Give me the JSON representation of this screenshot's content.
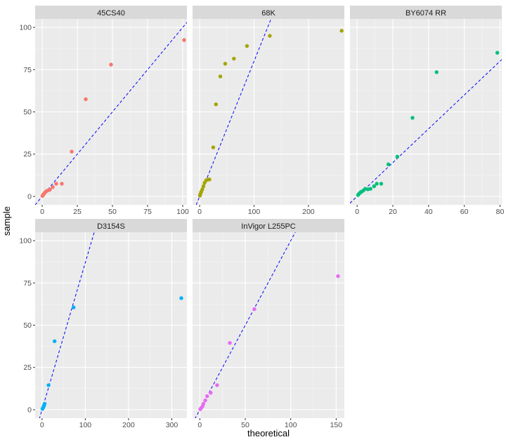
{
  "chart_data": {
    "type": "scatter",
    "xlabel": "theoretical",
    "ylabel": "sample",
    "facets": [
      {
        "label": "45CS40",
        "color": "#F8766D",
        "xlim": [
          -5,
          103
        ],
        "ylim": [
          -5,
          105
        ],
        "xticks": [
          0,
          25,
          50,
          75,
          100
        ],
        "yticks": [
          0,
          25,
          50,
          75,
          100
        ],
        "line": {
          "slope": 1.0,
          "intercept": 0
        },
        "points": [
          [
            0.2,
            0.3
          ],
          [
            0.6,
            0.8
          ],
          [
            1.0,
            1.2
          ],
          [
            1.5,
            1.8
          ],
          [
            2.2,
            2.5
          ],
          [
            3.0,
            3.1
          ],
          [
            4.2,
            3.6
          ],
          [
            5.5,
            4.0
          ],
          [
            7.5,
            5.5
          ],
          [
            10,
            7.5
          ],
          [
            14,
            7.5
          ],
          [
            21,
            26.5
          ],
          [
            31,
            57.5
          ],
          [
            49,
            78
          ],
          [
            101,
            92.5
          ]
        ]
      },
      {
        "label": "68K",
        "color": "#A3A500",
        "xlim": [
          -13,
          266
        ],
        "ylim": [
          -5,
          105
        ],
        "xticks": [
          0,
          100,
          200
        ],
        "yticks": [
          0,
          25,
          50,
          75,
          100
        ],
        "line": {
          "slope": 0.8,
          "intercept": 0
        },
        "points": [
          [
            0.5,
            0.5
          ],
          [
            1.5,
            1.5
          ],
          [
            3,
            2.8
          ],
          [
            5,
            4.2
          ],
          [
            7,
            6
          ],
          [
            9,
            8
          ],
          [
            12,
            9.5
          ],
          [
            15,
            10
          ],
          [
            18,
            10
          ],
          [
            25,
            29
          ],
          [
            30,
            54.5
          ],
          [
            38,
            71
          ],
          [
            47,
            78.5
          ],
          [
            63,
            81.5
          ],
          [
            87,
            89
          ],
          [
            129,
            95
          ],
          [
            261,
            98
          ]
        ]
      },
      {
        "label": "BY6074 RR",
        "color": "#00BF7D",
        "xlim": [
          -4,
          81
        ],
        "ylim": [
          -5,
          105
        ],
        "xticks": [
          0,
          20,
          40,
          60,
          80
        ],
        "yticks": [
          0,
          25,
          50,
          75,
          100
        ],
        "line": {
          "slope": 1.0,
          "intercept": 0
        },
        "points": [
          [
            0.5,
            0.8
          ],
          [
            1.0,
            1.5
          ],
          [
            1.5,
            2.0
          ],
          [
            2.0,
            2.5
          ],
          [
            2.5,
            2.8
          ],
          [
            3.5,
            3.5
          ],
          [
            4.5,
            4.5
          ],
          [
            6.0,
            4.2
          ],
          [
            7.5,
            4.5
          ],
          [
            9.5,
            6.0
          ],
          [
            11.0,
            7.5
          ],
          [
            13.5,
            7.5
          ],
          [
            17.5,
            19.0
          ],
          [
            22.5,
            23.5
          ],
          [
            31.0,
            46.5
          ],
          [
            44.5,
            73.5
          ],
          [
            78.5,
            85.0
          ]
        ]
      },
      {
        "label": "D3154S",
        "color": "#00B0F6",
        "xlim": [
          -16,
          335
        ],
        "ylim": [
          -5,
          105
        ],
        "xticks": [
          0,
          100,
          200,
          300
        ],
        "yticks": [
          0,
          25,
          50,
          75,
          100
        ],
        "line": {
          "slope": 0.87,
          "intercept": 0
        },
        "points": [
          [
            1,
            0.5
          ],
          [
            2.5,
            1.2
          ],
          [
            4,
            2.0
          ],
          [
            5,
            2.8
          ],
          [
            6,
            3.5
          ],
          [
            15,
            14.5
          ],
          [
            29,
            40.5
          ],
          [
            73,
            60.5
          ],
          [
            322,
            66
          ]
        ]
      },
      {
        "label": "InVigor L255PC",
        "color": "#E76BF3",
        "xlim": [
          -8,
          159
        ],
        "ylim": [
          -5,
          105
        ],
        "xticks": [
          0,
          50,
          100,
          150
        ],
        "yticks": [
          0,
          25,
          50,
          75,
          100
        ],
        "line": {
          "slope": 1.0,
          "intercept": 0
        },
        "points": [
          [
            0.5,
            0.3
          ],
          [
            1.5,
            1.0
          ],
          [
            3,
            2.0
          ],
          [
            4,
            3.5
          ],
          [
            6,
            5.5
          ],
          [
            8,
            8
          ],
          [
            12,
            10
          ],
          [
            19,
            14.5
          ],
          [
            33,
            39.5
          ],
          [
            60,
            59.5
          ],
          [
            152,
            79
          ]
        ]
      }
    ]
  }
}
